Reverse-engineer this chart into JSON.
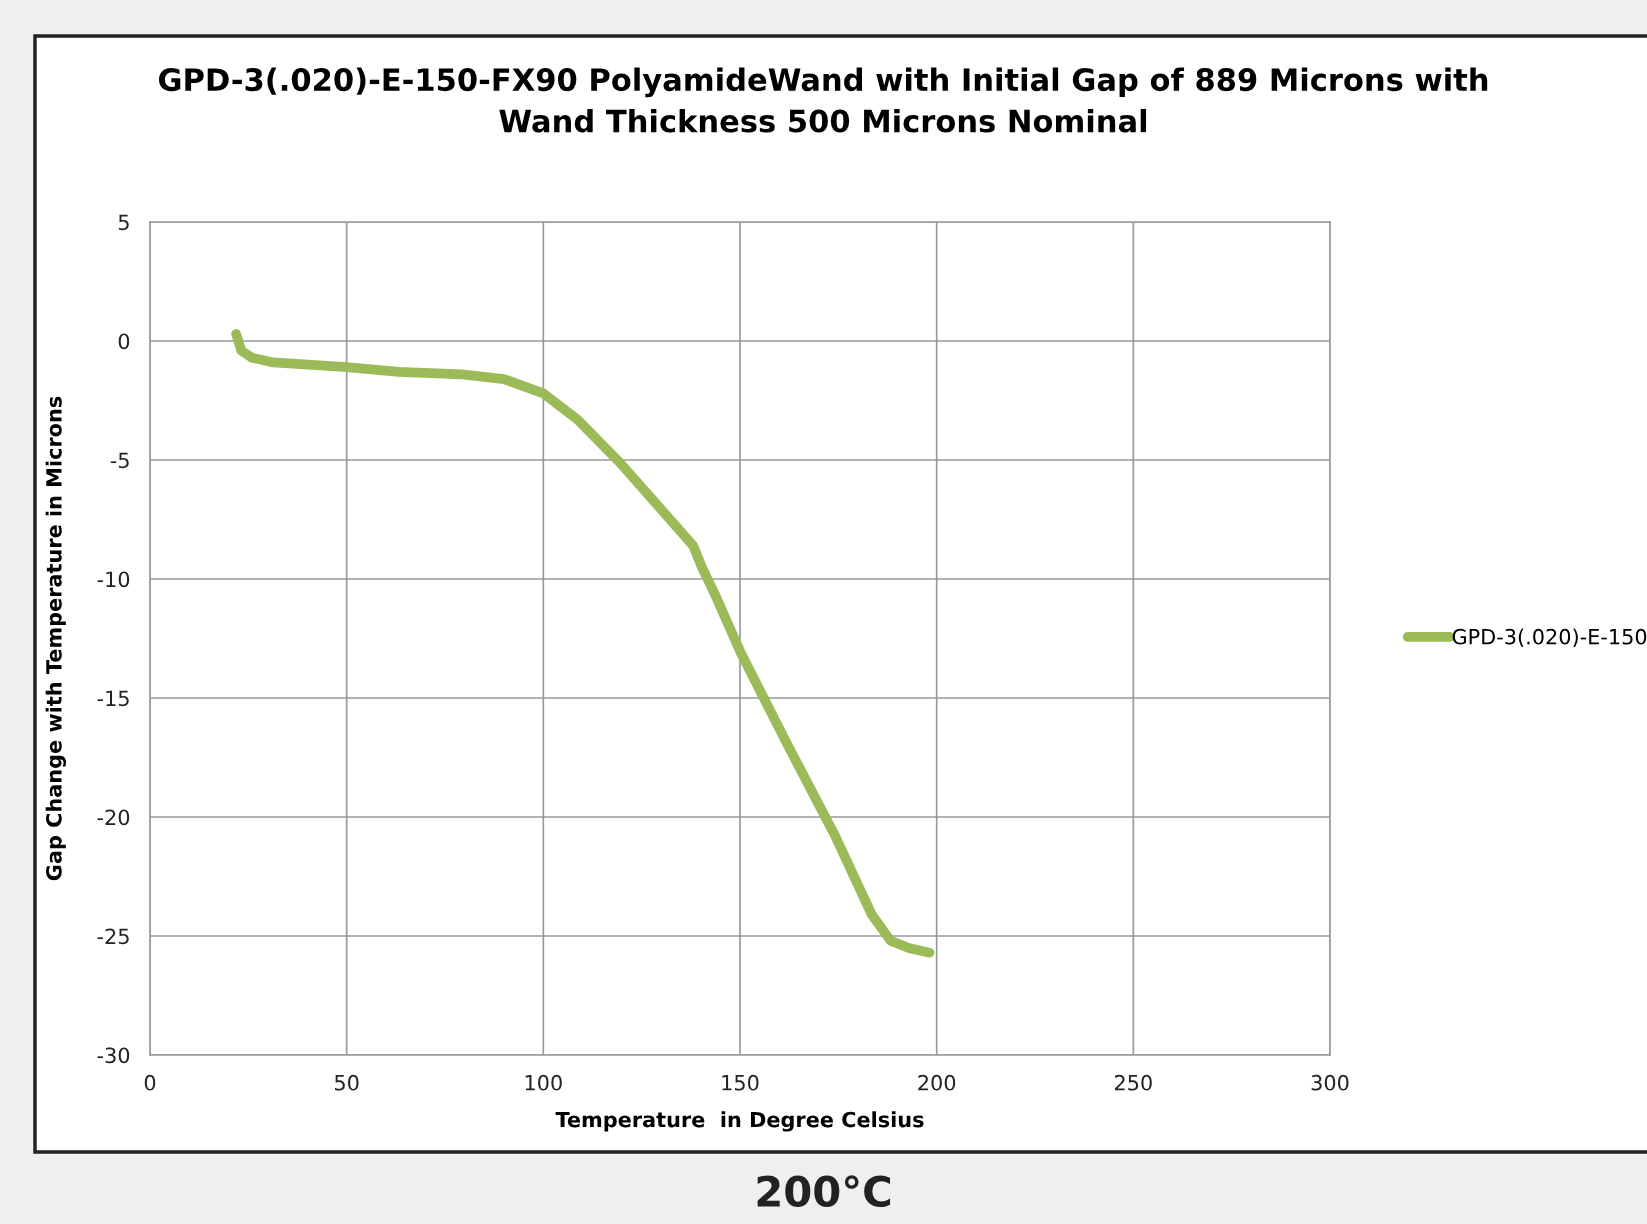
{
  "chart_data": {
    "type": "line",
    "title": "GPD-3(.020)-E-150-FX90 PolyamideWand with Initial Gap of 889 Microns with\nWand Thickness 500 Microns Nominal",
    "xlabel": "Temperature  in Degree Celsius",
    "ylabel": "Gap Change with Temperature in Microns",
    "annotations": [
      "200°C"
    ],
    "series": [
      {
        "name": "GPD-3(.020)-E-150",
        "color": "#9bbb59",
        "x": [
          21.9,
          23.2,
          25.9,
          31.3,
          50,
          63.3,
          79.3,
          90,
          100,
          108.7,
          119.4,
          130.1,
          138.1,
          140.3,
          143.5,
          150.2,
          162.2,
          174.2,
          183.5,
          188.3,
          192.9,
          198.2
        ],
        "values": [
          0.3,
          -0.4,
          -0.7,
          -0.9,
          -1.1,
          -1.3,
          -1.4,
          -1.6,
          -2.2,
          -3.3,
          -5.1,
          -7.1,
          -8.6,
          -9.5,
          -10.6,
          -13.1,
          -17.0,
          -20.8,
          -24.1,
          -25.2,
          -25.5,
          -25.7
        ]
      }
    ],
    "xlim": [
      0,
      300
    ],
    "xticks": [
      0,
      50,
      100,
      150,
      200,
      250,
      300
    ],
    "ylim": [
      -30,
      5
    ],
    "yticks": [
      -30,
      -25,
      -20,
      -15,
      -10,
      -5,
      0,
      5
    ],
    "grid": true,
    "legend": "right",
    "marker": "none",
    "line_style": "solid"
  }
}
